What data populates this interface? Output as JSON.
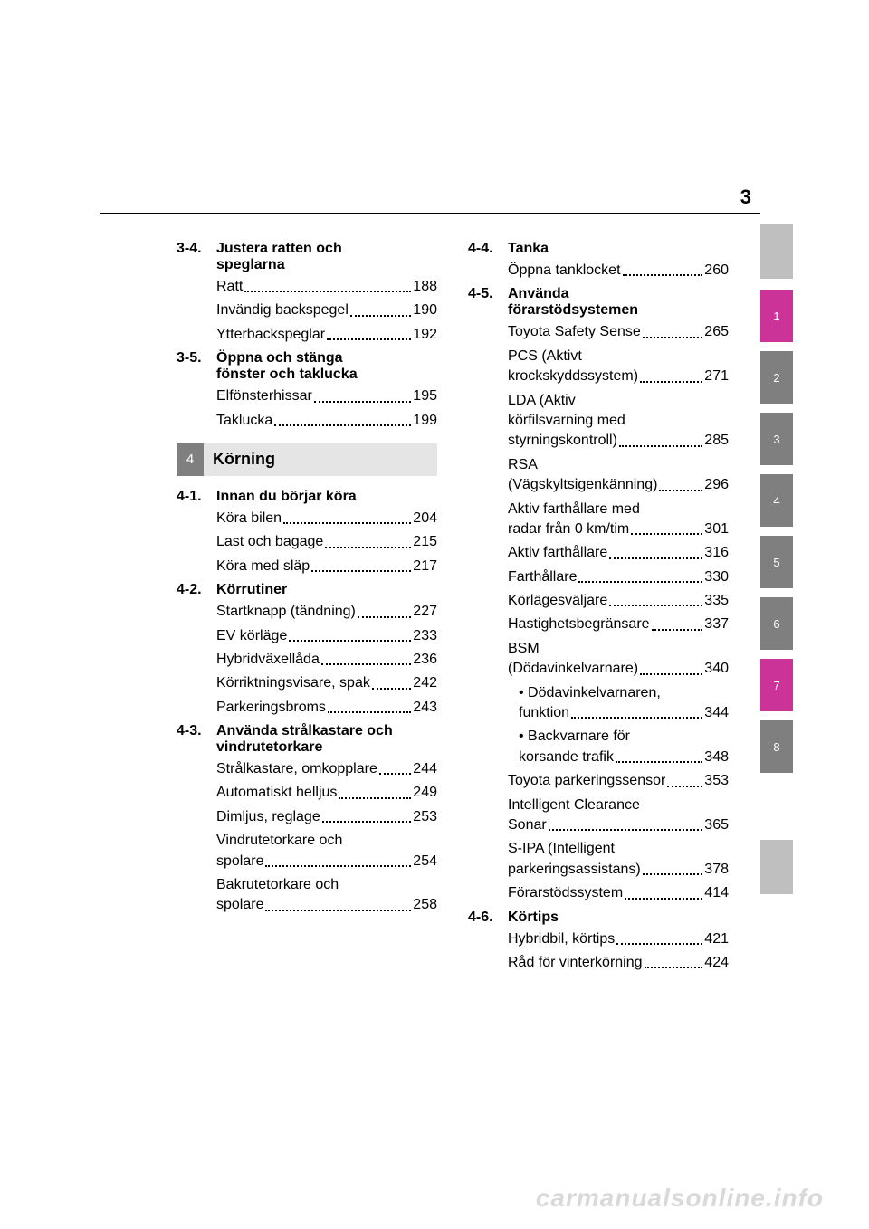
{
  "page_number": "3",
  "watermark": "carmanualsonline.info",
  "side_tabs": {
    "top_filler_color": "#bfbfbf",
    "bottom_filler_color": "#bfbfbf",
    "items": [
      {
        "n": "1",
        "bg": "#cc3399"
      },
      {
        "n": "2",
        "bg": "#7f7f7f"
      },
      {
        "n": "3",
        "bg": "#7f7f7f"
      },
      {
        "n": "4",
        "bg": "#7f7f7f"
      },
      {
        "n": "5",
        "bg": "#7f7f7f"
      },
      {
        "n": "6",
        "bg": "#7f7f7f"
      },
      {
        "n": "7",
        "bg": "#cc3399"
      },
      {
        "n": "8",
        "bg": "#7f7f7f"
      }
    ]
  },
  "left": {
    "s34": {
      "num": "3-4.",
      "title1": "Justera ratten och",
      "title2": "speglarna",
      "e1": {
        "t": "Ratt",
        "p": "188"
      },
      "e2": {
        "t": "Invändig backspegel",
        "p": "190"
      },
      "e3": {
        "t": "Ytterbackspeglar",
        "p": "192"
      }
    },
    "s35": {
      "num": "3-5.",
      "title1": "Öppna och stänga",
      "title2": "fönster och taklucka",
      "e1": {
        "t": "Elfönsterhissar",
        "p": "195"
      },
      "e2": {
        "t": "Taklucka",
        "p": "199"
      }
    },
    "chapter": {
      "num": "4",
      "title": "Körning"
    },
    "s41": {
      "num": "4-1.",
      "title": "Innan du börjar köra",
      "e1": {
        "t": "Köra bilen",
        "p": "204"
      },
      "e2": {
        "t": "Last och bagage",
        "p": "215"
      },
      "e3": {
        "t": "Köra med släp",
        "p": "217"
      }
    },
    "s42": {
      "num": "4-2.",
      "title": "Körrutiner",
      "e1": {
        "t": "Startknapp (tändning)",
        "p": "227"
      },
      "e2": {
        "t": "EV körläge",
        "p": "233"
      },
      "e3": {
        "t": "Hybridväxellåda",
        "p": "236"
      },
      "e4": {
        "t": "Körriktningsvisare, spak",
        "p": "242"
      },
      "e5": {
        "t": "Parkeringsbroms",
        "p": "243"
      }
    },
    "s43": {
      "num": "4-3.",
      "title1": "Använda strålkastare och",
      "title2": "vindrutetorkare",
      "e1": {
        "t": "Strålkastare, omkopplare",
        "p": "244"
      },
      "e2": {
        "t": "Automatiskt helljus",
        "p": "249"
      },
      "e3": {
        "t": "Dimljus, reglage",
        "p": "253"
      },
      "e4": {
        "t1": "Vindrutetorkare och",
        "t2": "spolare",
        "p": "254"
      },
      "e5": {
        "t1": "Bakrutetorkare och",
        "t2": "spolare",
        "p": "258"
      }
    }
  },
  "right": {
    "s44": {
      "num": "4-4.",
      "title": "Tanka",
      "e1": {
        "t": "Öppna tanklocket",
        "p": "260"
      }
    },
    "s45": {
      "num": "4-5.",
      "title1": "Använda",
      "title2": "förarstödsystemen",
      "e1": {
        "t": "Toyota Safety Sense",
        "p": "265"
      },
      "e2": {
        "t1": "PCS (Aktivt",
        "t2": "krockskyddssystem)",
        "p": "271"
      },
      "e3": {
        "t1": "LDA (Aktiv",
        "t2": "körfilsvarning med",
        "t3": "styrningskontroll)",
        "p": "285"
      },
      "e4": {
        "t1": "RSA",
        "t2": "(Vägskyltsigenkänning)",
        "p": "296"
      },
      "e5": {
        "t1": "Aktiv farthållare med",
        "t2": "radar från 0 km/tim",
        "p": "301"
      },
      "e6": {
        "t": "Aktiv farthållare",
        "p": "316"
      },
      "e7": {
        "t": "Farthållare",
        "p": "330"
      },
      "e8": {
        "t": "Körlägesväljare",
        "p": "335"
      },
      "e9": {
        "t": "Hastighetsbegränsare",
        "p": "337"
      },
      "e10": {
        "t1": "BSM",
        "t2": "(Dödavinkelvarnare)",
        "p": "340"
      },
      "e10a": {
        "t1": "• Dödavinkelvarnaren,",
        "t2": "funktion",
        "p": "344"
      },
      "e10b": {
        "t1": "• Backvarnare för",
        "t2": "korsande trafik",
        "p": "348"
      },
      "e11": {
        "t": "Toyota parkeringssensor",
        "p": "353"
      },
      "e12": {
        "t1": "Intelligent Clearance",
        "t2": "Sonar",
        "p": "365"
      },
      "e13": {
        "t1": "S-IPA (Intelligent",
        "t2": "parkeringsassistans)",
        "p": "378"
      },
      "e14": {
        "t": "Förarstödssystem",
        "p": "414"
      }
    },
    "s46": {
      "num": "4-6.",
      "title": "Körtips",
      "e1": {
        "t": "Hybridbil, körtips",
        "p": "421"
      },
      "e2": {
        "t": "Råd för vinterkörning",
        "p": "424"
      }
    }
  }
}
